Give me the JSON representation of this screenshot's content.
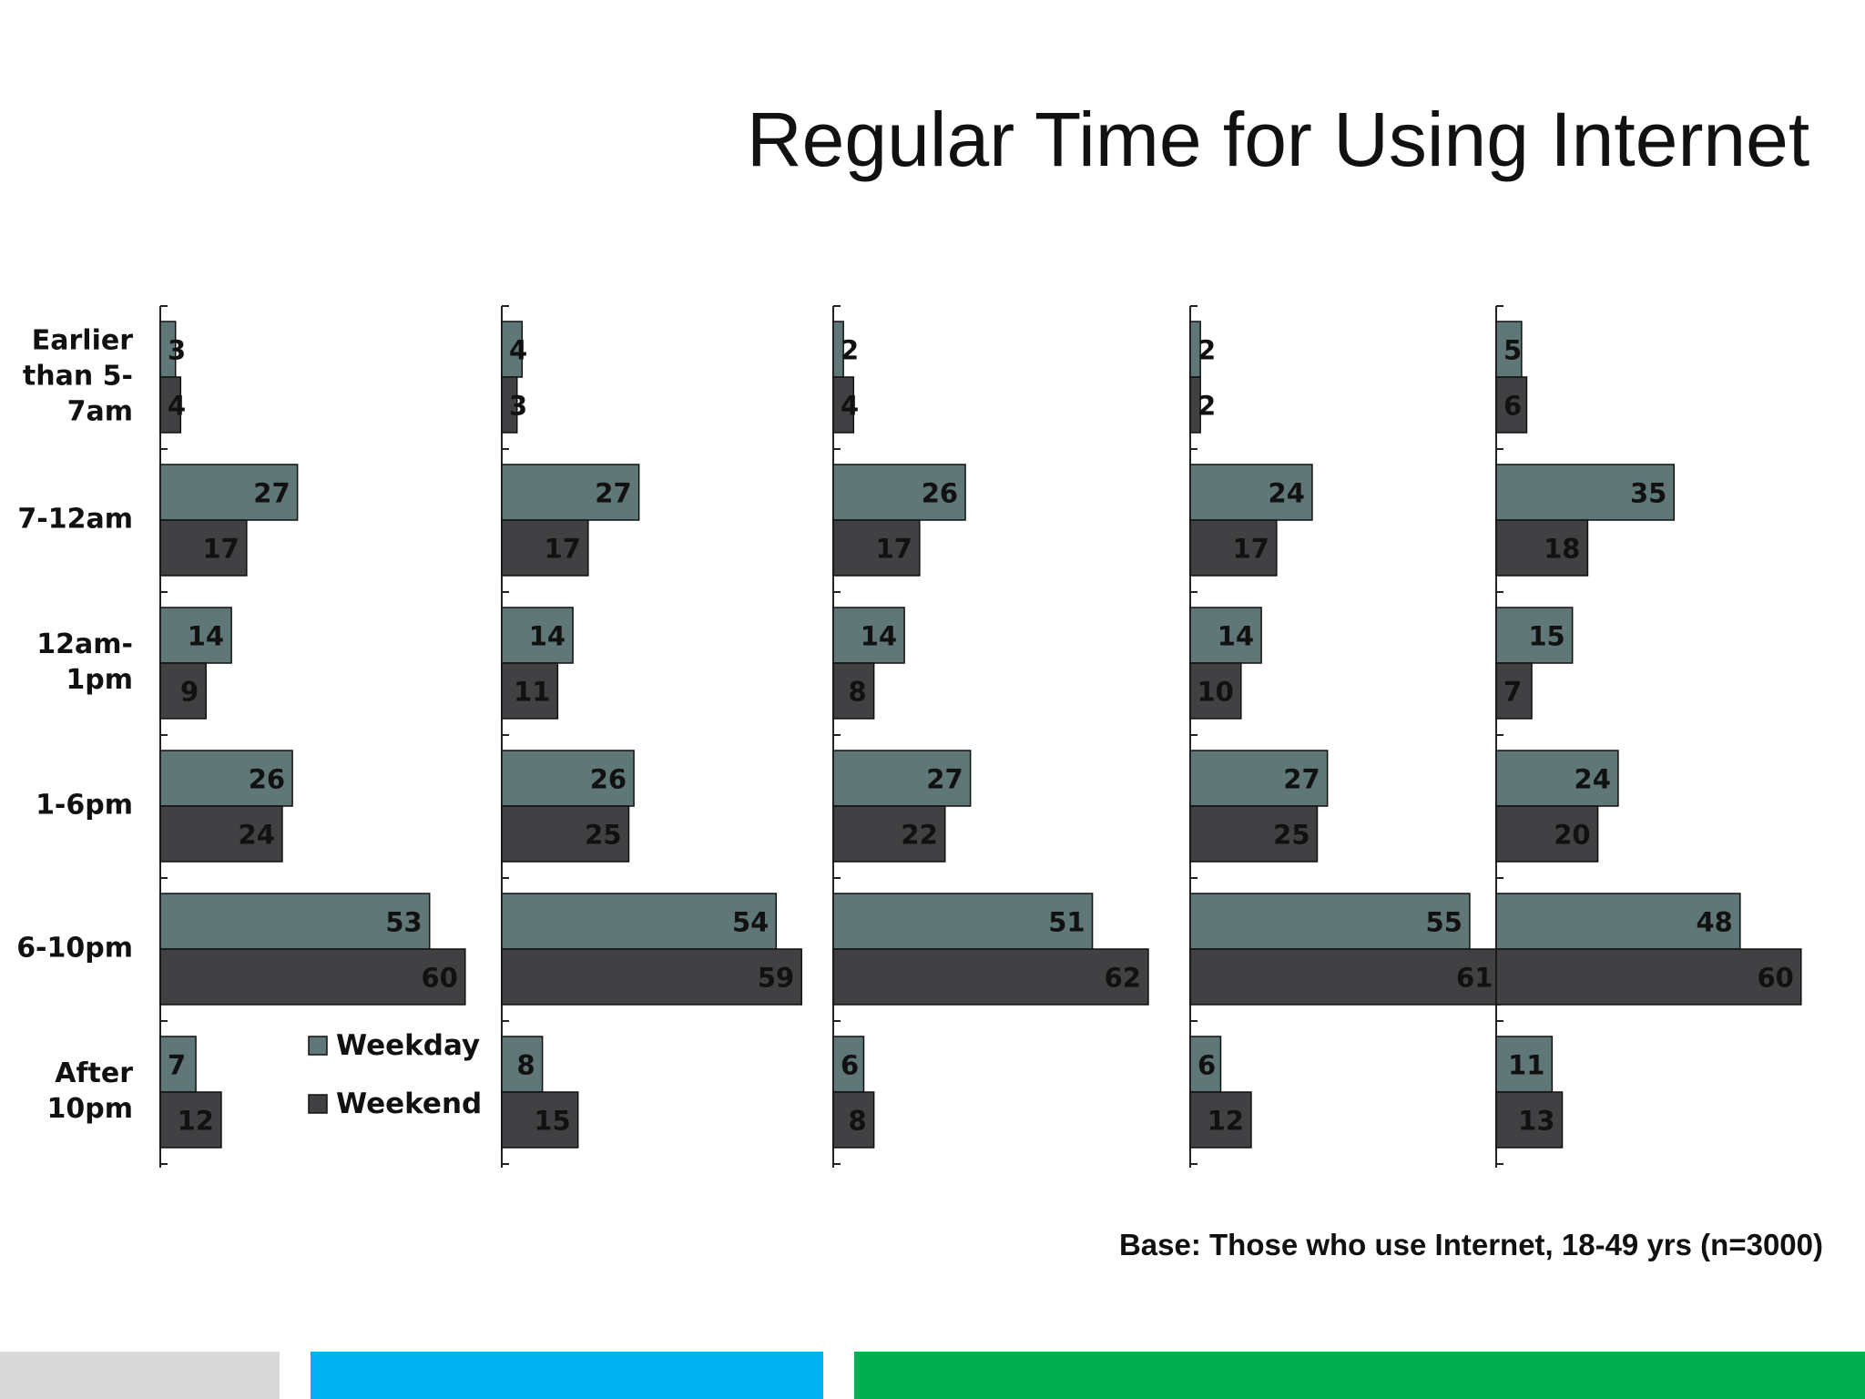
{
  "title": "Regular Time for Using Internet",
  "base_note": "Base: Those who use Internet, 18-49 yrs (n=3000)",
  "colors": {
    "weekday": "#5f7776",
    "weekend": "#414042",
    "footer_gray": "#d9d9d9",
    "footer_blue": "#00b0f0",
    "footer_green": "#00b050"
  },
  "chart_data": {
    "type": "bar",
    "orientation": "horizontal",
    "categories": [
      [
        "Earlier",
        "than 5-",
        "7am"
      ],
      [
        "7-12am"
      ],
      [
        "12am-",
        "1pm"
      ],
      [
        "1-6pm"
      ],
      [
        "6-10pm"
      ],
      [
        "After",
        "10pm"
      ]
    ],
    "legend": {
      "placement": "inside-bottom-right-of-first-panel",
      "entries": [
        "Weekday",
        "Weekend"
      ]
    },
    "panels": [
      {
        "series": [
          {
            "name": "Weekday",
            "values": [
              3,
              27,
              14,
              26,
              53,
              7
            ]
          },
          {
            "name": "Weekend",
            "values": [
              4,
              17,
              9,
              24,
              60,
              12
            ]
          }
        ]
      },
      {
        "series": [
          {
            "name": "Weekday",
            "values": [
              4,
              27,
              14,
              26,
              54,
              8
            ]
          },
          {
            "name": "Weekend",
            "values": [
              3,
              17,
              11,
              25,
              59,
              15
            ]
          }
        ]
      },
      {
        "series": [
          {
            "name": "Weekday",
            "values": [
              2,
              26,
              14,
              27,
              51,
              6
            ]
          },
          {
            "name": "Weekend",
            "values": [
              4,
              17,
              8,
              22,
              62,
              8
            ]
          }
        ]
      },
      {
        "series": [
          {
            "name": "Weekday",
            "values": [
              2,
              24,
              14,
              27,
              55,
              6
            ]
          },
          {
            "name": "Weekend",
            "values": [
              2,
              17,
              10,
              25,
              61,
              12
            ]
          }
        ]
      },
      {
        "series": [
          {
            "name": "Weekday",
            "values": [
              5,
              35,
              15,
              24,
              48,
              11
            ]
          },
          {
            "name": "Weekend",
            "values": [
              6,
              18,
              7,
              20,
              60,
              13
            ]
          }
        ]
      }
    ]
  }
}
